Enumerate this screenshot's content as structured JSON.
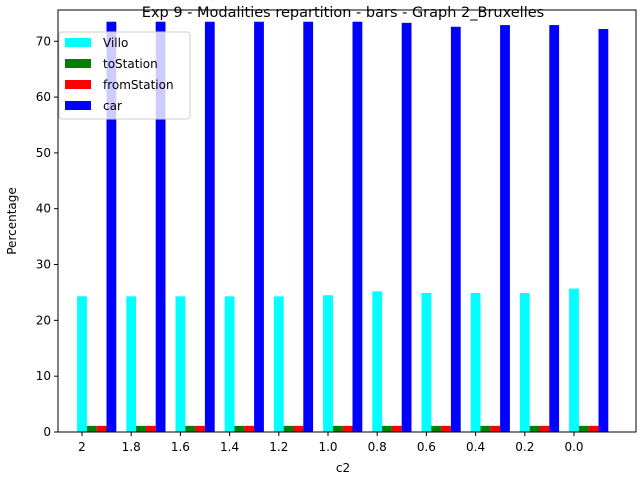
{
  "chart_data": {
    "type": "bar",
    "title": "Exp 9 - Modalities repartition - bars - Graph 2_Bruxelles",
    "xlabel": "c2",
    "ylabel": "Percentage",
    "categories": [
      "2",
      "1.8",
      "1.6",
      "1.4",
      "1.2",
      "1.0",
      "0.8",
      "0.6",
      "0.4",
      "0.2",
      "0.0"
    ],
    "ylim": [
      0,
      75.6
    ],
    "yticks": [
      0,
      10,
      20,
      30,
      40,
      50,
      60,
      70
    ],
    "grid": false,
    "legend_position": "top-left",
    "series": [
      {
        "name": "Villo",
        "color": "#00ffff",
        "values": [
          24.3,
          24.3,
          24.3,
          24.3,
          24.3,
          24.5,
          25.2,
          24.9,
          24.9,
          24.9,
          25.7
        ]
      },
      {
        "name": "toStation",
        "color": "#008000",
        "values": [
          1.1,
          1.1,
          1.1,
          1.1,
          1.1,
          1.1,
          1.1,
          1.1,
          1.1,
          1.1,
          1.1
        ]
      },
      {
        "name": "fromStation",
        "color": "#ff0000",
        "values": [
          1.1,
          1.1,
          1.1,
          1.1,
          1.1,
          1.1,
          1.1,
          1.1,
          1.1,
          1.1,
          1.1
        ]
      },
      {
        "name": "car",
        "color": "#0000ff",
        "values": [
          73.5,
          73.5,
          73.5,
          73.5,
          73.5,
          73.5,
          73.3,
          72.6,
          72.9,
          72.9,
          72.2
        ]
      }
    ]
  }
}
